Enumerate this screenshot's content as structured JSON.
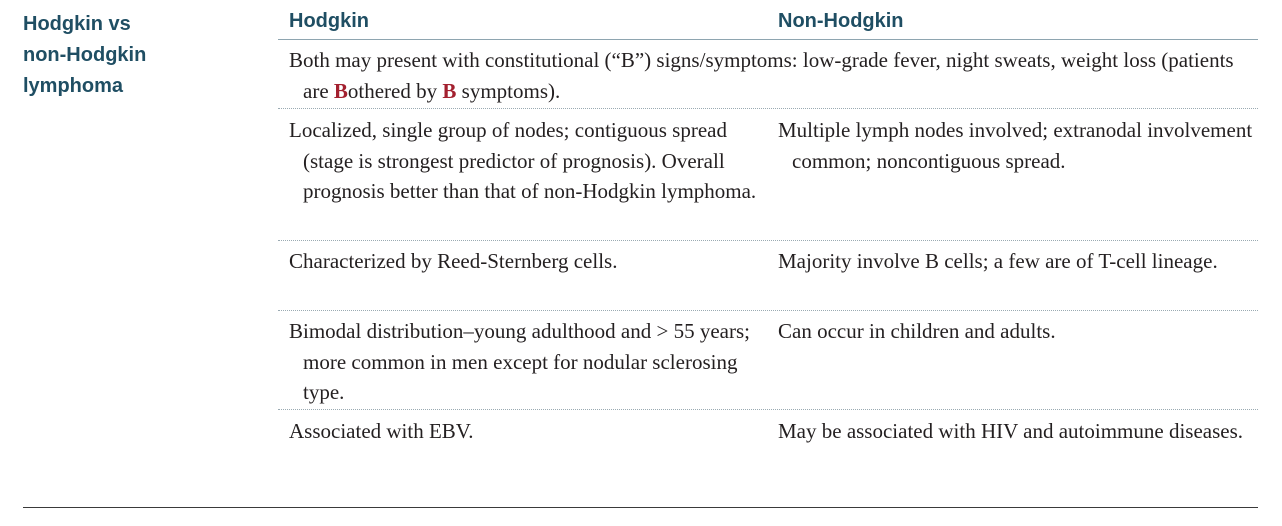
{
  "section_title": [
    "Hodgkin vs",
    "non-Hodgkin",
    "lymphoma"
  ],
  "columns": {
    "hodgkin": "Hodgkin",
    "non_hodgkin": "Non-Hodgkin"
  },
  "rows": [
    {
      "shared": {
        "line1": "Both may present with constitutional (“B”) signs/symptoms: low-grade fever, night sweats, weight",
        "pre": "loss (patients are ",
        "hl1": "B",
        "mid": "othered by ",
        "hl2": "B",
        "post": " symptoms)."
      }
    },
    {
      "hodgkin": "Localized, single group of nodes; contiguous spread (stage is strongest predictor of prognosis). Overall prognosis better than that of non-Hodgkin lymphoma.",
      "non_hodgkin": "Multiple lymph nodes involved; extranodal involvement common; noncontiguous spread."
    },
    {
      "hodgkin": "Characterized by Reed-Sternberg cells.",
      "non_hodgkin": "Majority involve B cells; a few are of T-cell lineage."
    },
    {
      "hodgkin": "Bimodal distribution–young adulthood and > 55 years; more common in men except for nodular sclerosing type.",
      "non_hodgkin": "Can occur in children and adults."
    },
    {
      "hodgkin": "Associated with EBV.",
      "non_hodgkin": "May be associated with HIV and autoimmune diseases."
    }
  ],
  "colors": {
    "heading": "#1f4e63",
    "highlight": "#a3202f",
    "body_text": "#231f20"
  }
}
